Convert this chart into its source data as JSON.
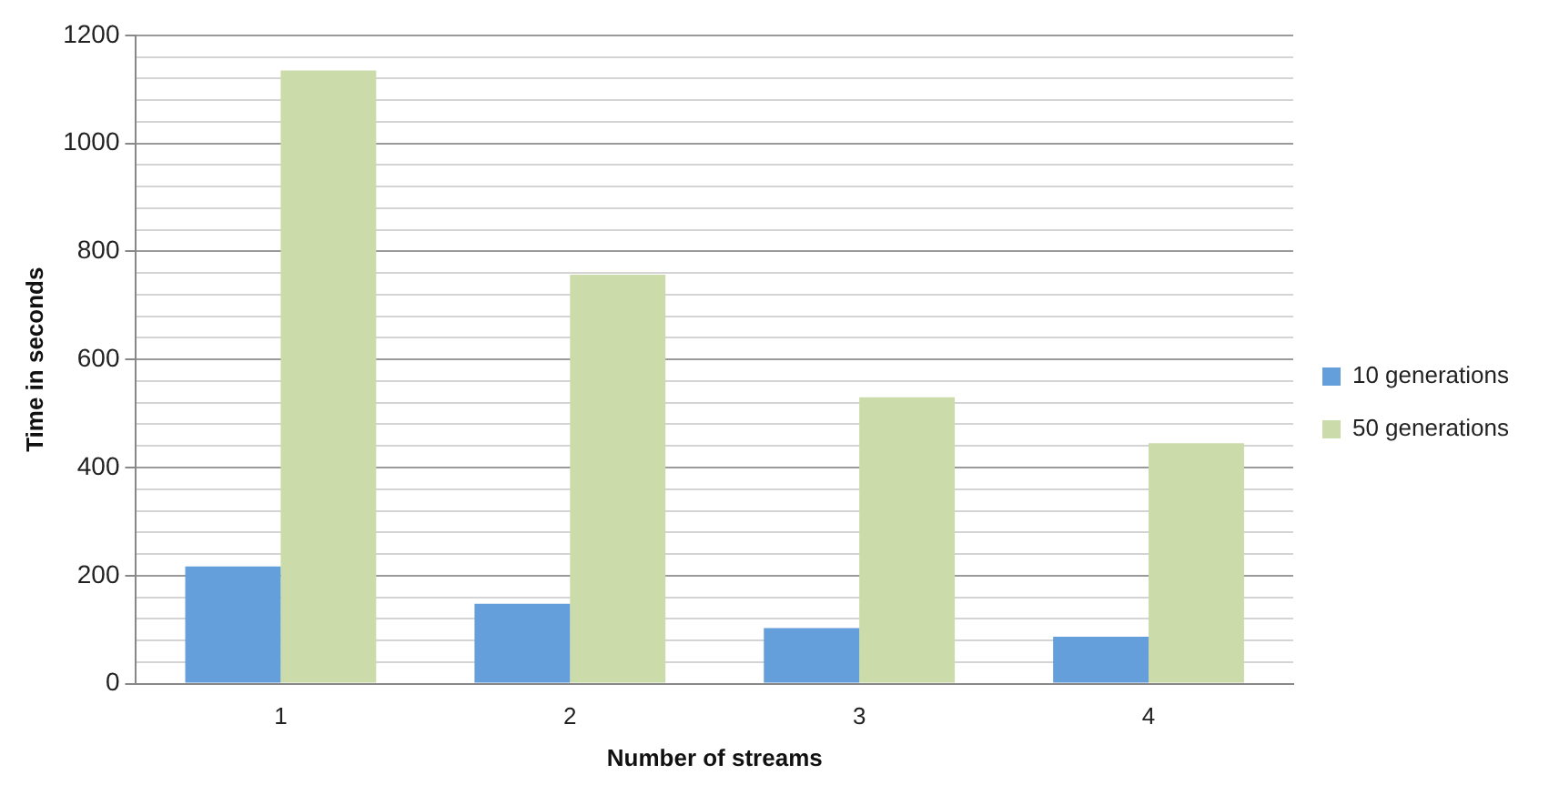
{
  "chart_data": {
    "type": "bar",
    "xlabel": "Number of streams",
    "ylabel": "Time in seconds",
    "categories": [
      "1",
      "2",
      "3",
      "4"
    ],
    "series": [
      {
        "name": "10 generations",
        "color": "#659fdb",
        "values": [
          217,
          148,
          103,
          87
        ]
      },
      {
        "name": "50 generations",
        "color": "#cbdba9",
        "values": [
          1135,
          757,
          530,
          445
        ]
      }
    ],
    "ylim": [
      0,
      1200
    ],
    "yticks": [
      0,
      {
        "value": 40,
        "label": null
      },
      {
        "value": 80,
        "label": null
      },
      {
        "value": 120,
        "label": null
      },
      {
        "value": 160,
        "label": null
      },
      200,
      {
        "value": 240,
        "label": null
      },
      {
        "value": 280,
        "label": null
      },
      {
        "value": 320,
        "label": null
      },
      {
        "value": 360,
        "label": null
      },
      400,
      {
        "value": 440,
        "label": null
      },
      {
        "value": 480,
        "label": null
      },
      {
        "value": 520,
        "label": null
      },
      {
        "value": 560,
        "label": null
      },
      600,
      {
        "value": 640,
        "label": null
      },
      {
        "value": 680,
        "label": null
      },
      {
        "value": 720,
        "label": null
      },
      {
        "value": 760,
        "label": null
      },
      800,
      {
        "value": 840,
        "label": null
      },
      {
        "value": 880,
        "label": null
      },
      {
        "value": 920,
        "label": null
      },
      {
        "value": 960,
        "label": null
      },
      1000,
      {
        "value": 1040,
        "label": null
      },
      {
        "value": 1080,
        "label": null
      },
      {
        "value": 1120,
        "label": null
      },
      {
        "value": 1160,
        "label": null
      },
      1200
    ],
    "grid": "y",
    "legend": "right"
  }
}
